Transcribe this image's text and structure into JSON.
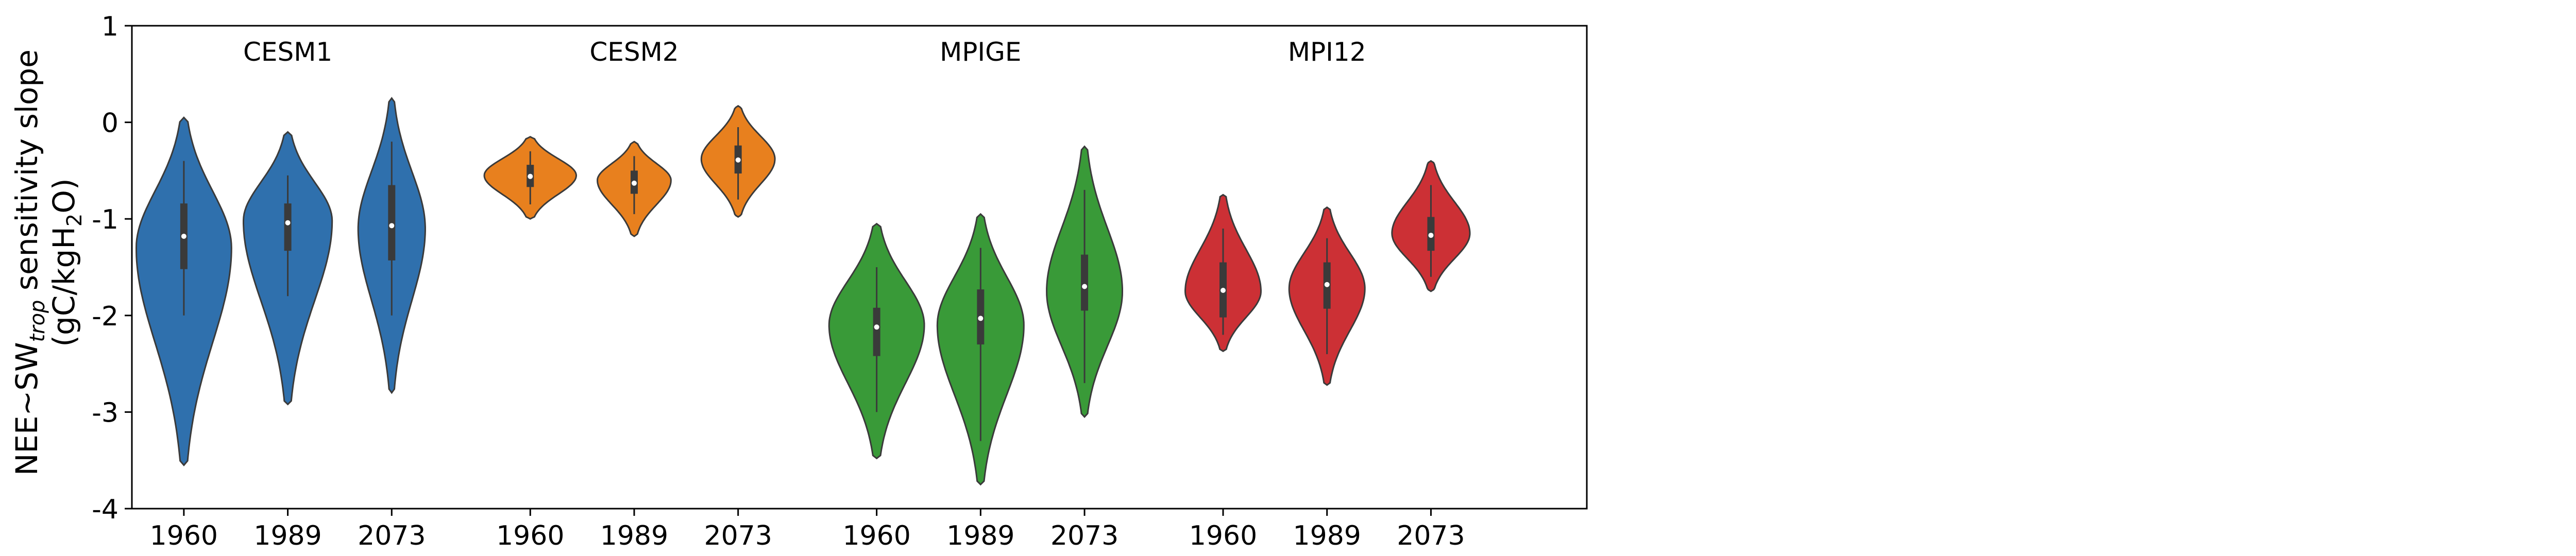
{
  "chart_data": {
    "type": "violin",
    "ylabel_line1": "NEE~SW",
    "ylabel_sub": "trop",
    "ylabel_line1_suffix": " sensitivity slope",
    "ylabel_line2_prefix": "(gC/kgH",
    "ylabel_line2_sub": "2",
    "ylabel_line2_suffix": "O)",
    "ylim": [
      -4,
      1
    ],
    "yticks": [
      "1",
      "0",
      "-1",
      "-2",
      "-3",
      "-4"
    ],
    "ytick_values": [
      1,
      0,
      -1,
      -2,
      -3,
      -4
    ],
    "grid": false,
    "groups": [
      {
        "name": "CESM1",
        "color": "#2f70ad",
        "violins": [
          {
            "x": "1960",
            "min": -3.55,
            "max": 0.05,
            "q1": -1.52,
            "median": -1.18,
            "q3": -0.84,
            "wlo": -2.0,
            "whi": -0.4,
            "peak": -1.3,
            "width": 0.88
          },
          {
            "x": "1989",
            "min": -2.92,
            "max": -0.1,
            "q1": -1.33,
            "median": -1.04,
            "q3": -0.84,
            "wlo": -1.8,
            "whi": -0.55,
            "peak": -1.02,
            "width": 0.82
          },
          {
            "x": "2073",
            "min": -2.8,
            "max": 0.25,
            "q1": -1.43,
            "median": -1.07,
            "q3": -0.65,
            "wlo": -2.0,
            "whi": -0.2,
            "peak": -1.1,
            "width": 0.62
          }
        ]
      },
      {
        "name": "CESM2",
        "color": "#e8801e",
        "violins": [
          {
            "x": "1960",
            "min": -1.0,
            "max": -0.15,
            "q1": -0.67,
            "median": -0.56,
            "q3": -0.44,
            "wlo": -0.85,
            "whi": -0.3,
            "peak": -0.55,
            "width": 0.85
          },
          {
            "x": "1989",
            "min": -1.18,
            "max": -0.2,
            "q1": -0.74,
            "median": -0.63,
            "q3": -0.5,
            "wlo": -0.95,
            "whi": -0.35,
            "peak": -0.6,
            "width": 0.68
          },
          {
            "x": "2073",
            "min": -0.98,
            "max": 0.17,
            "q1": -0.53,
            "median": -0.39,
            "q3": -0.24,
            "wlo": -0.8,
            "whi": -0.05,
            "peak": -0.38,
            "width": 0.68
          }
        ]
      },
      {
        "name": "MPIGE",
        "color": "#399a38",
        "violins": [
          {
            "x": "1960",
            "min": -3.48,
            "max": -1.05,
            "q1": -2.42,
            "median": -2.12,
            "q3": -1.92,
            "wlo": -3.0,
            "whi": -1.5,
            "peak": -2.1,
            "width": 0.88
          },
          {
            "x": "1989",
            "min": -3.75,
            "max": -0.95,
            "q1": -2.3,
            "median": -2.03,
            "q3": -1.73,
            "wlo": -3.3,
            "whi": -1.3,
            "peak": -2.1,
            "width": 0.8
          },
          {
            "x": "2073",
            "min": -3.05,
            "max": -0.25,
            "q1": -1.95,
            "median": -1.7,
            "q3": -1.37,
            "wlo": -2.7,
            "whi": -0.7,
            "peak": -1.75,
            "width": 0.7
          }
        ]
      },
      {
        "name": "MPI12",
        "color": "#cc3035",
        "violins": [
          {
            "x": "1960",
            "min": -2.37,
            "max": -0.75,
            "q1": -2.02,
            "median": -1.74,
            "q3": -1.45,
            "wlo": -2.2,
            "whi": -1.1,
            "peak": -1.75,
            "width": 0.7
          },
          {
            "x": "1989",
            "min": -2.72,
            "max": -0.88,
            "q1": -1.93,
            "median": -1.68,
            "q3": -1.45,
            "wlo": -2.4,
            "whi": -1.2,
            "peak": -1.72,
            "width": 0.7
          },
          {
            "x": "2073",
            "min": -1.75,
            "max": -0.4,
            "q1": -1.33,
            "median": -1.17,
            "q3": -0.98,
            "wlo": -1.6,
            "whi": -0.65,
            "peak": -1.15,
            "width": 0.72
          }
        ]
      }
    ]
  }
}
